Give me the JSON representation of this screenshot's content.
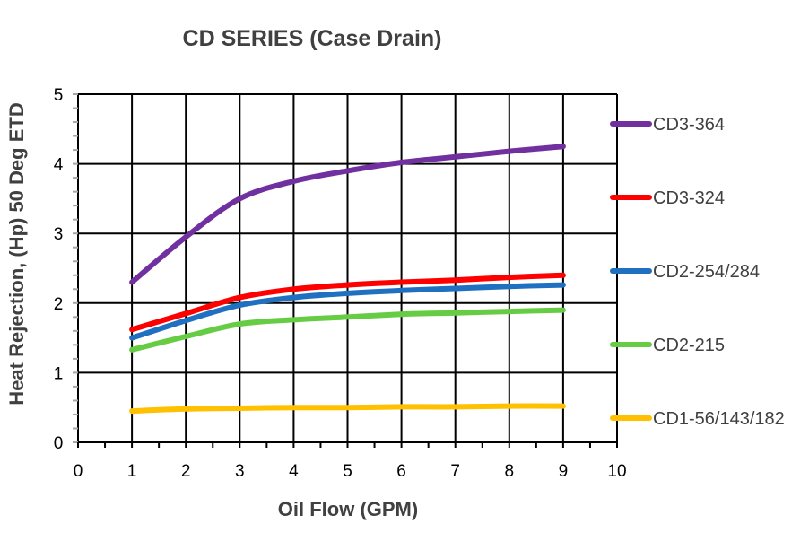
{
  "chart_data": {
    "type": "line",
    "title": "CD SERIES (Case Drain)",
    "xlabel": "Oil Flow (GPM)",
    "ylabel": "Heat Rejection, (Hp) 50 Deg ETD",
    "xlim": [
      0,
      10
    ],
    "ylim": [
      0,
      5
    ],
    "x_ticks": [
      0,
      1,
      2,
      3,
      4,
      5,
      6,
      7,
      8,
      9,
      10
    ],
    "y_ticks": [
      0,
      1,
      2,
      3,
      4,
      5
    ],
    "grid": true,
    "legend": "right",
    "x": [
      1,
      2,
      3,
      4,
      5,
      6,
      7,
      8,
      9
    ],
    "series": [
      {
        "name": "CD3-364",
        "color": "#7030a0",
        "values": [
          2.3,
          2.95,
          3.5,
          3.75,
          3.9,
          4.02,
          4.1,
          4.18,
          4.25
        ]
      },
      {
        "name": "CD3-324",
        "color": "#ff0000",
        "values": [
          1.62,
          1.85,
          2.08,
          2.2,
          2.26,
          2.3,
          2.33,
          2.37,
          2.4
        ]
      },
      {
        "name": "CD2-254/284",
        "color": "#1f70c1",
        "values": [
          1.5,
          1.75,
          1.97,
          2.08,
          2.14,
          2.18,
          2.21,
          2.24,
          2.26
        ]
      },
      {
        "name": "CD2-215",
        "color": "#66cc44",
        "values": [
          1.33,
          1.52,
          1.7,
          1.76,
          1.8,
          1.84,
          1.86,
          1.88,
          1.9
        ]
      },
      {
        "name": "CD1-56/143/182",
        "color": "#ffc000",
        "values": [
          0.45,
          0.48,
          0.49,
          0.5,
          0.5,
          0.51,
          0.51,
          0.52,
          0.52
        ]
      }
    ]
  }
}
